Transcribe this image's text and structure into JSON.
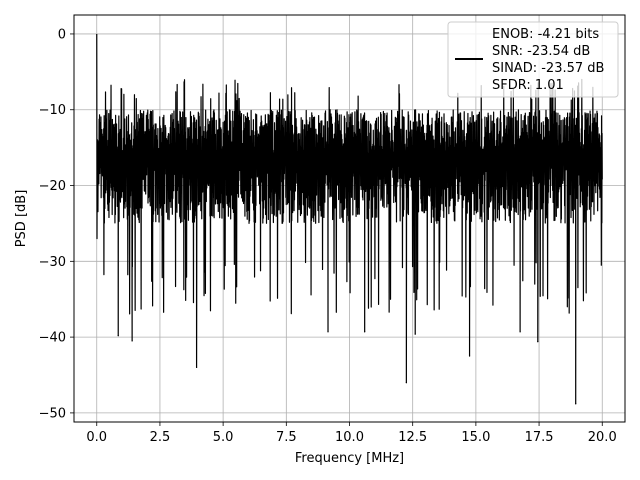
{
  "chart_data": {
    "type": "line",
    "xlabel": "Frequency [MHz]",
    "ylabel": "PSD [dB]",
    "xlim": [
      -0.9,
      20.9
    ],
    "ylim": [
      -51.2,
      2.5
    ],
    "xticks": [
      0.0,
      2.5,
      5.0,
      7.5,
      10.0,
      12.5,
      15.0,
      17.5,
      20.0
    ],
    "xtick_labels": [
      "0.0",
      "2.5",
      "5.0",
      "7.5",
      "10.0",
      "12.5",
      "15.0",
      "17.5",
      "20.0"
    ],
    "yticks": [
      0,
      -10,
      -20,
      -30,
      -40,
      -50
    ],
    "ytick_labels": [
      "0",
      "−10",
      "−20",
      "−30",
      "−40",
      "−50"
    ],
    "grid": true,
    "legend_position": "top-right",
    "legend_lines": [
      "ENOB: -4.21 bits",
      "SNR: -23.54 dB",
      "SINAD: -23.57 dB",
      "SFDR: 1.01"
    ],
    "series": [
      {
        "color": "#000000",
        "description": "noise-like PSD spanning 0 to 20 MHz, peak 0 dB at 0 MHz, mostly between -10 and -28 dB",
        "peak": {
          "x": 0.0,
          "y": 0.0
        },
        "band": {
          "upper_typical": -10,
          "lower_typical": -27,
          "upper_max": -6
        },
        "notable_dips": [
          {
            "x": 3.95,
            "y": -44.0
          },
          {
            "x": 12.25,
            "y": -46.0
          },
          {
            "x": 14.75,
            "y": -42.5
          },
          {
            "x": 18.95,
            "y": -48.8
          },
          {
            "x": 1.4,
            "y": -40.5
          },
          {
            "x": 0.85,
            "y": -39.8
          },
          {
            "x": 9.15,
            "y": -39.3
          },
          {
            "x": 10.6,
            "y": -39.3
          },
          {
            "x": 12.6,
            "y": -39.6
          },
          {
            "x": 16.75,
            "y": -39.3
          },
          {
            "x": 17.45,
            "y": -40.6
          }
        ]
      }
    ]
  }
}
